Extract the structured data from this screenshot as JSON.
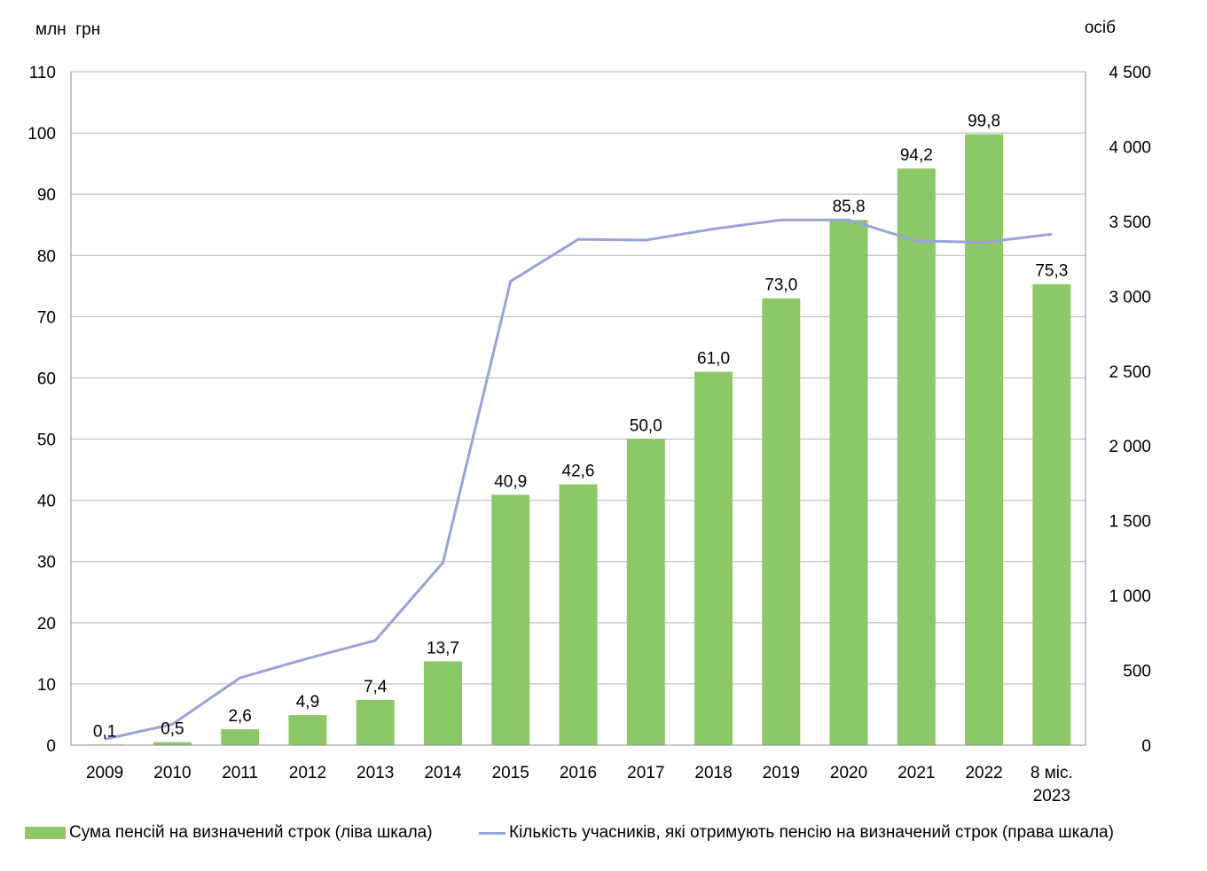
{
  "chart_data": {
    "type": "bar+line",
    "left_axis_unit": "млн  грн",
    "right_axis_unit": "осіб",
    "categories": [
      "2009",
      "2010",
      "2011",
      "2012",
      "2013",
      "2014",
      "2015",
      "2016",
      "2017",
      "2018",
      "2019",
      "2020",
      "2021",
      "2022",
      "8 міс.|2023"
    ],
    "bar_series": {
      "name": "Сума пенсій на визначений строк (ліва шкала)",
      "color": "#8CC867",
      "values": [
        0.1,
        0.5,
        2.6,
        4.9,
        7.4,
        13.7,
        40.9,
        42.6,
        50.0,
        61.0,
        73.0,
        85.8,
        94.2,
        99.8,
        75.3
      ],
      "labels": [
        "0,1",
        "0,5",
        "2,6",
        "4,9",
        "7,4",
        "13,7",
        "40,9",
        "42,6",
        "50,0",
        "61,0",
        "73,0",
        "85,8",
        "94,2",
        "99,8",
        "75,3"
      ]
    },
    "line_series": {
      "name": "Кількість учасників, які отримують пенсію на визначений строк (права шкала)",
      "color": "#9AA3D8",
      "values": [
        40,
        140,
        450,
        580,
        700,
        1220,
        3100,
        3380,
        3375,
        3450,
        3510,
        3510,
        3370,
        3360,
        3415
      ]
    },
    "left_axis": {
      "ylim": [
        0,
        110
      ],
      "ticks": [
        "0",
        "10",
        "20",
        "30",
        "40",
        "50",
        "60",
        "70",
        "80",
        "90",
        "100",
        "110"
      ]
    },
    "right_axis": {
      "ylim": [
        0,
        4500
      ],
      "ticks": [
        "0",
        "500",
        "1 000",
        "1 500",
        "2 000",
        "2 500",
        "3 000",
        "3 500",
        "4 000",
        "4 500"
      ]
    },
    "grid": true,
    "legend_position": "bottom"
  }
}
